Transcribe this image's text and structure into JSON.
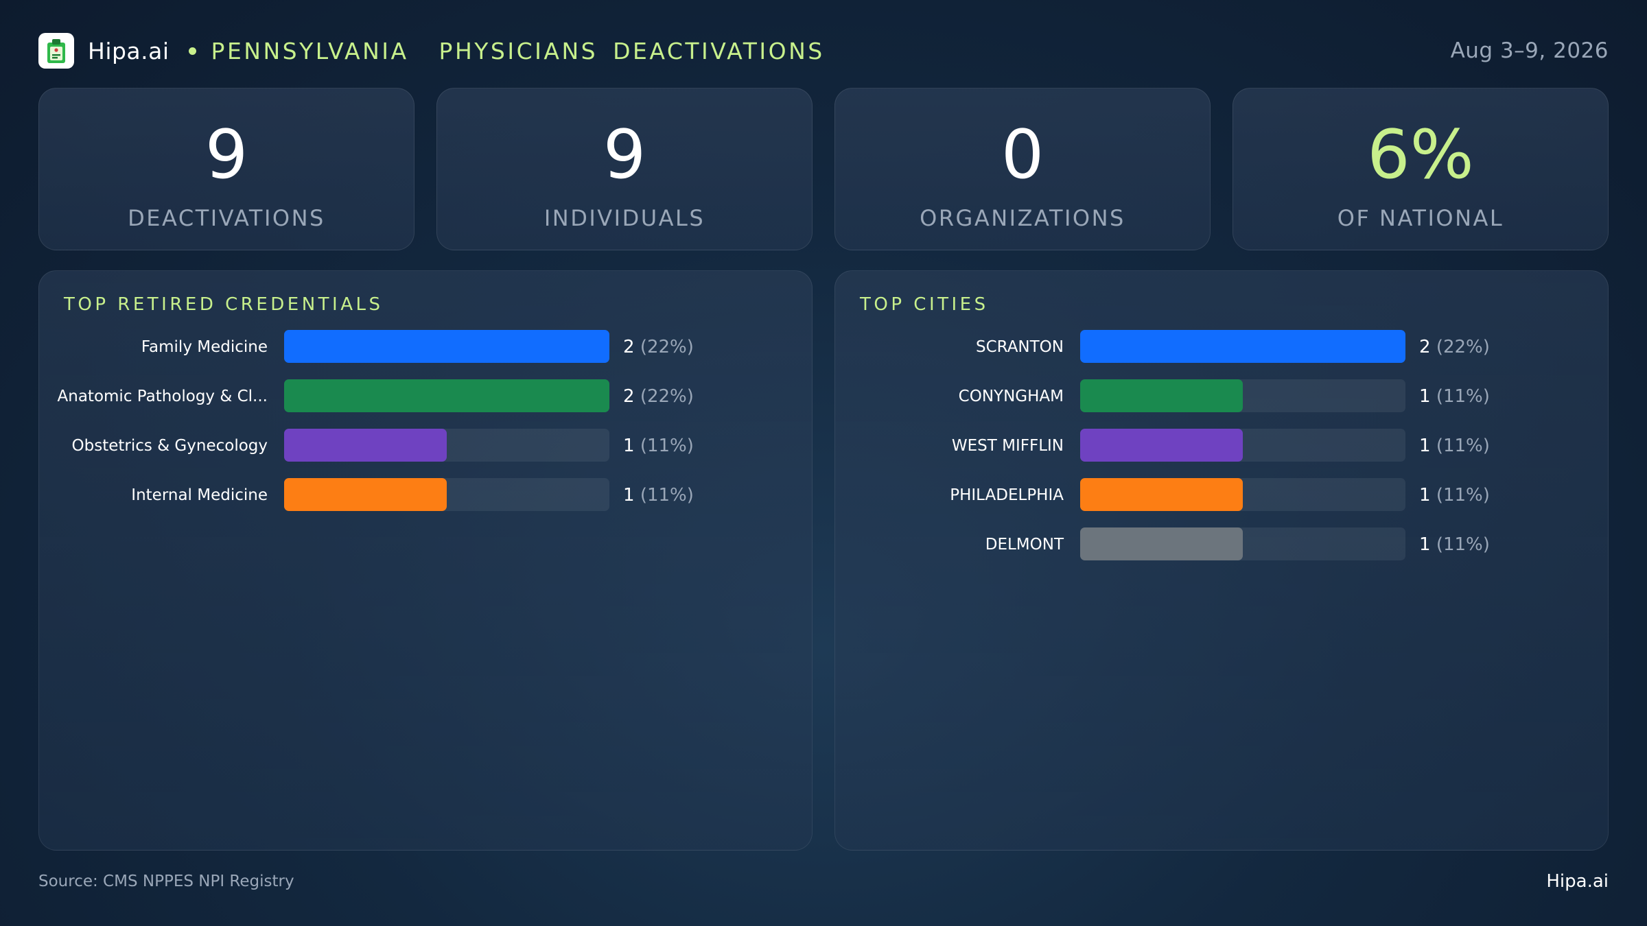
{
  "header": {
    "brand": "Hipa.ai",
    "title": "PENNSYLVANIA  PHYSICIANS DEACTIVATIONS",
    "date": "Aug 3–9, 2026",
    "logo_icon": "clipboard-logo-icon",
    "accent_color": "#c8f08c"
  },
  "kpis": [
    {
      "value": "9",
      "label": "DEACTIVATIONS"
    },
    {
      "value": "9",
      "label": "INDIVIDUALS"
    },
    {
      "value": "0",
      "label": "ORGANIZATIONS"
    },
    {
      "value": "6%",
      "label": "OF NATIONAL"
    }
  ],
  "chart_data": [
    {
      "type": "bar",
      "orientation": "horizontal",
      "title": "TOP RETIRED CREDENTIALS",
      "categories": [
        "Family Medicine",
        "Anatomic Pathology & Cl...",
        "Obstetrics & Gynecology",
        "Internal Medicine"
      ],
      "values": [
        2,
        2,
        1,
        1
      ],
      "percent_labels": [
        "(22%)",
        "(22%)",
        "(11%)",
        "(11%)"
      ],
      "colors": [
        "#116dff",
        "#1a8a4f",
        "#6f42c1",
        "#fd7e14"
      ],
      "xlim": [
        0,
        2
      ]
    },
    {
      "type": "bar",
      "orientation": "horizontal",
      "title": "TOP CITIES",
      "categories": [
        "SCRANTON",
        "CONYNGHAM",
        "WEST MIFFLIN",
        "PHILADELPHIA",
        "DELMONT"
      ],
      "values": [
        2,
        1,
        1,
        1,
        1
      ],
      "percent_labels": [
        "(22%)",
        "(11%)",
        "(11%)",
        "(11%)",
        "(11%)"
      ],
      "colors": [
        "#116dff",
        "#1a8a4f",
        "#6f42c1",
        "#fd7e14",
        "#6c757d"
      ],
      "xlim": [
        0,
        2
      ]
    }
  ],
  "footer": {
    "source": "Source: CMS NPPES NPI Registry",
    "brand": "Hipa.ai"
  }
}
